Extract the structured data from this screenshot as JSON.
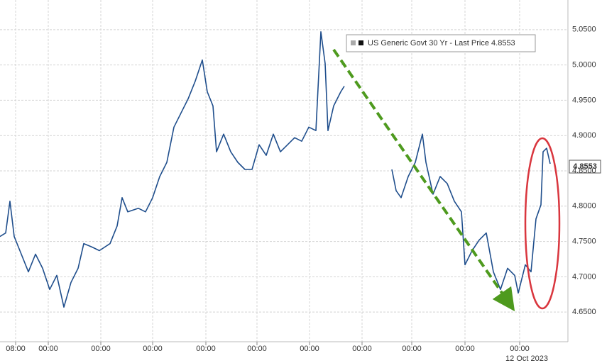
{
  "chart_data": {
    "type": "line",
    "series": [
      {
        "name": "US Generic Govt 30 Yr - Last Price 4.8553",
        "color": "#1f4e8c",
        "x": [
          0,
          8,
          14,
          20,
          30,
          40,
          50,
          60,
          70,
          80,
          90,
          100,
          110,
          118,
          130,
          140,
          155,
          165,
          172,
          180,
          195,
          205,
          215,
          225,
          235,
          245,
          255,
          265,
          275,
          285,
          292,
          300,
          305,
          315,
          325,
          335,
          345,
          355,
          365,
          375,
          385,
          395,
          405,
          415,
          425,
          435,
          445,
          452,
          458,
          462,
          470,
          480,
          485,
          520,
          552,
          558,
          565,
          575,
          585,
          595,
          600,
          610,
          620,
          630,
          640,
          650,
          655,
          665,
          675,
          685,
          695,
          705,
          715,
          725,
          730,
          740,
          748,
          755,
          762,
          765,
          770,
          775
        ],
        "values": [
          4.757,
          4.762,
          4.807,
          4.757,
          4.732,
          4.707,
          4.732,
          4.712,
          4.682,
          4.702,
          4.657,
          4.692,
          4.712,
          4.747,
          4.742,
          4.737,
          4.747,
          4.772,
          4.812,
          4.792,
          4.797,
          4.792,
          4.812,
          4.842,
          4.862,
          4.912,
          4.932,
          4.952,
          4.977,
          5.007,
          4.962,
          4.942,
          4.877,
          4.902,
          4.877,
          4.862,
          4.852,
          4.852,
          4.887,
          4.872,
          4.902,
          4.877,
          4.887,
          4.897,
          4.892,
          4.912,
          4.907,
          5.047,
          5.002,
          4.907,
          4.942,
          4.962,
          4.97,
          null,
          4.852,
          4.822,
          4.812,
          4.842,
          4.862,
          4.902,
          4.862,
          4.817,
          4.842,
          4.832,
          4.807,
          4.792,
          4.717,
          4.737,
          4.752,
          4.762,
          4.707,
          4.682,
          4.712,
          4.702,
          4.677,
          4.717,
          4.707,
          4.782,
          4.802,
          4.877,
          4.882,
          4.86
        ]
      }
    ],
    "last_price": {
      "value": 4.8553,
      "label": "4.8553"
    },
    "xlim": [
      0,
      800
    ],
    "xticks": [
      {
        "value": 22,
        "label": "08:00"
      },
      {
        "value": 68,
        "label": "00:00"
      },
      {
        "value": 142,
        "label": "00:00"
      },
      {
        "value": 215,
        "label": "00:00"
      },
      {
        "value": 290,
        "label": "00:00"
      },
      {
        "value": 362,
        "label": "00:00"
      },
      {
        "value": 436,
        "label": "00:00"
      },
      {
        "value": 510,
        "label": "00:00"
      },
      {
        "value": 580,
        "label": "00:00"
      },
      {
        "value": 655,
        "label": "00:00"
      },
      {
        "value": 732,
        "label": "00:00"
      }
    ],
    "date_label": "12 Oct 2023",
    "ylim": [
      4.608,
      5.092
    ],
    "yticks": [
      {
        "value": 4.65,
        "label": "4.6500"
      },
      {
        "value": 4.7,
        "label": "4.7000"
      },
      {
        "value": 4.75,
        "label": "4.7500"
      },
      {
        "value": 4.8,
        "label": "4.8000"
      },
      {
        "value": 4.85,
        "label": "4.8500"
      },
      {
        "value": 4.9,
        "label": "4.9000"
      },
      {
        "value": 4.95,
        "label": "4.9500"
      },
      {
        "value": 5.0,
        "label": "5.0000"
      },
      {
        "value": 5.05,
        "label": "5.0500"
      }
    ],
    "grid": true
  }
}
